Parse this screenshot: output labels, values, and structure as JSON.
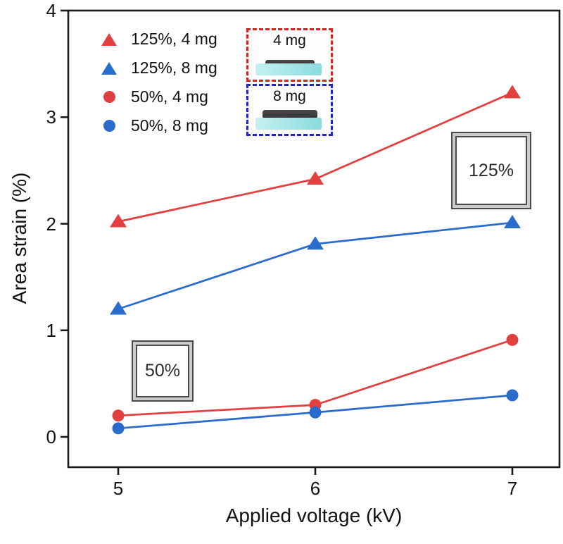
{
  "figure": {
    "background": "#ffffff",
    "axis_color": "#1a1a1a"
  },
  "chart_data": {
    "type": "line",
    "title": "",
    "xlabel": "Applied voltage (kV)",
    "ylabel": "Area strain (%)",
    "x": [
      5,
      6,
      7
    ],
    "x_ticks": [
      "5",
      "6",
      "7"
    ],
    "y_ticks": [
      "0",
      "1",
      "2",
      "3",
      "4"
    ],
    "xlim": [
      4.75,
      7.24
    ],
    "ylim": [
      -0.28,
      4
    ],
    "grid": false,
    "legend_position": "top-left",
    "series": [
      {
        "name": "125%, 4 mg",
        "marker": "triangle",
        "color": "#e24040",
        "values": [
          2.02,
          2.42,
          3.23
        ]
      },
      {
        "name": "125%, 8 mg",
        "marker": "triangle",
        "color": "#2a6ccb",
        "values": [
          1.2,
          1.81,
          2.01
        ]
      },
      {
        "name": "50%, 4 mg",
        "marker": "circle",
        "color": "#e24040",
        "values": [
          0.2,
          0.3,
          0.91
        ]
      },
      {
        "name": "50%, 8 mg",
        "marker": "circle",
        "color": "#2a6ccb",
        "values": [
          0.08,
          0.23,
          0.39
        ]
      }
    ]
  },
  "inset": {
    "slab_color_start": "#c6f1f0",
    "slab_color_end": "#8adade",
    "strip_color": "#333333",
    "items": [
      {
        "label": "4 mg",
        "border_color": "#d42525",
        "strip": "thin"
      },
      {
        "label": "8 mg",
        "border_color": "#2323cc",
        "strip": "thick"
      }
    ]
  },
  "annotations": [
    {
      "label": "125%"
    },
    {
      "label": "50%"
    }
  ]
}
